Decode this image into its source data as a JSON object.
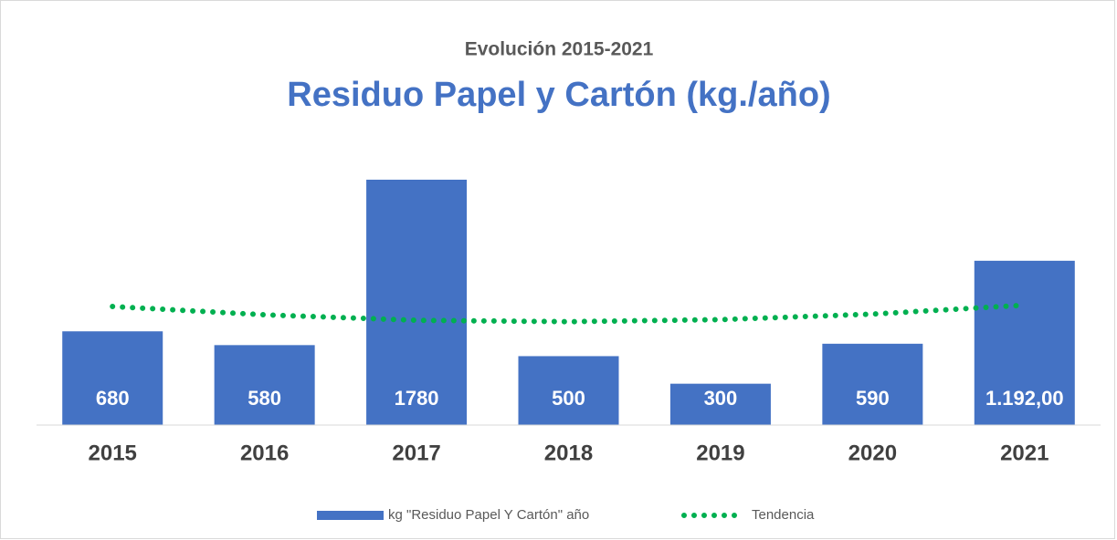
{
  "chart_data": {
    "type": "bar",
    "title": "Evolución 2015-2021",
    "subtitle": "Residuo Papel y Cartón (kg./año)",
    "categories": [
      "2015",
      "2016",
      "2017",
      "2018",
      "2019",
      "2020",
      "2021"
    ],
    "series": [
      {
        "name": "kg \"Residuo Papel Y Cartón\" año",
        "color": "#4472c4",
        "values": [
          680,
          580,
          1780,
          500,
          300,
          590,
          1192
        ],
        "value_labels": [
          "680",
          "580",
          "1780",
          "500",
          "300",
          "590",
          "1.192,00"
        ]
      },
      {
        "name": "Tendencia",
        "type": "line",
        "style": "dotted",
        "color": "#00b050",
        "values": [
          860,
          800,
          760,
          750,
          765,
          805,
          870
        ]
      }
    ],
    "legend": "bottom"
  }
}
